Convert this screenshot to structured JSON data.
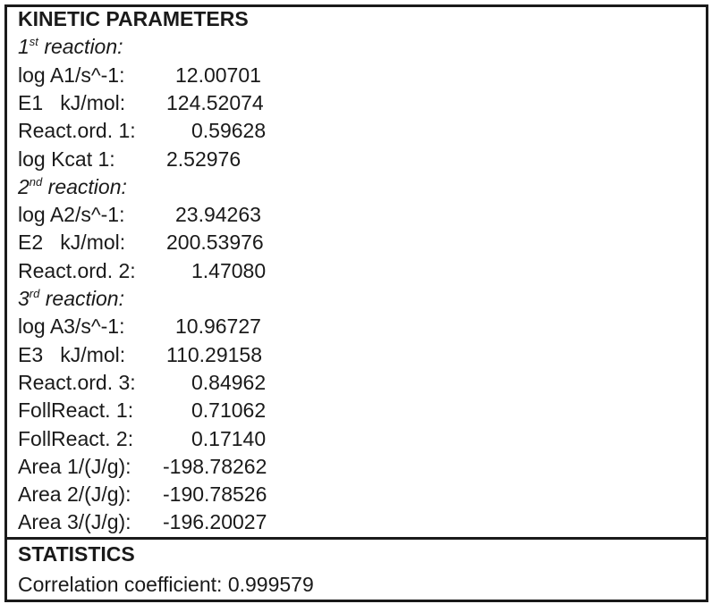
{
  "kinetic_parameters": {
    "title": "KINETIC PARAMETERS",
    "reactions": [
      {
        "heading": {
          "number": "1",
          "suffix": "st",
          "text": "reaction:"
        },
        "rows": [
          {
            "label": "log A1/s^-1:",
            "value": "12.00701"
          },
          {
            "label": "E1   kJ/mol:",
            "value": "124.52074"
          },
          {
            "label": "React.ord. 1:",
            "value": "0.59628"
          },
          {
            "label": "log Kcat 1:",
            "value": "2.52976"
          }
        ]
      },
      {
        "heading": {
          "number": "2",
          "suffix": "nd",
          "text": "reaction:"
        },
        "rows": [
          {
            "label": "log A2/s^-1:",
            "value": "23.94263"
          },
          {
            "label": "E2   kJ/mol:",
            "value": "200.53976"
          },
          {
            "label": "React.ord. 2:",
            "value": "1.47080"
          }
        ]
      },
      {
        "heading": {
          "number": "3",
          "suffix": "rd",
          "text": "reaction:"
        },
        "rows": [
          {
            "label": "log A3/s^-1:",
            "value": "10.96727"
          },
          {
            "label": "E3   kJ/mol:",
            "value": "110.29158"
          },
          {
            "label": "React.ord. 3:",
            "value": "0.84962"
          },
          {
            "label": "FollReact. 1:",
            "value": "0.71062"
          },
          {
            "label": "FollReact. 2:",
            "value": "0.17140"
          },
          {
            "label": "Area 1/(J/g):",
            "value": "-198.78262"
          },
          {
            "label": "Area 2/(J/g):",
            "value": "-190.78526"
          },
          {
            "label": "Area 3/(J/g):",
            "value": "-196.20027"
          }
        ]
      }
    ]
  },
  "statistics": {
    "title": "STATISTICS",
    "rows": [
      {
        "label": "Correlation coefficient:",
        "value": "0.999579"
      }
    ]
  }
}
